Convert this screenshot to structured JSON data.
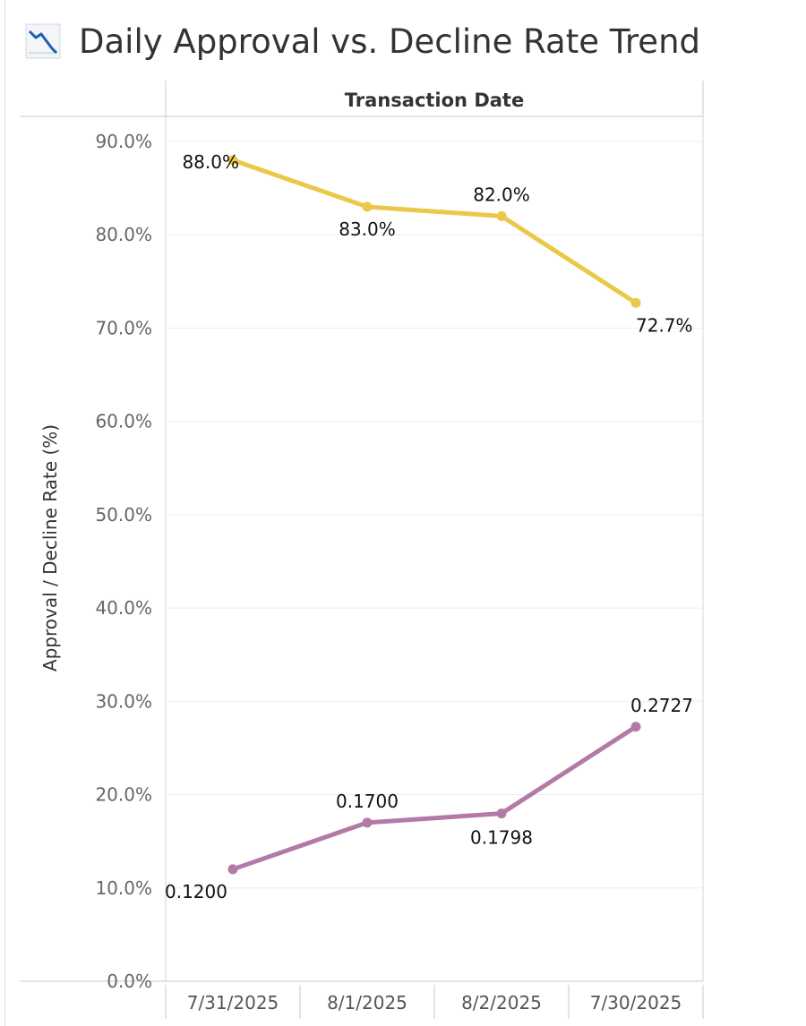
{
  "page": {
    "title": "Daily Approval vs. Decline Rate Trend",
    "title_icon": "line-chart-icon"
  },
  "chart_data": {
    "type": "line",
    "column_header": "Transaction Date",
    "ylabel": "Approval / Decline Rate (%)",
    "categories": [
      "7/31/2025",
      "8/1/2025",
      "8/2/2025",
      "7/30/2025"
    ],
    "y_ticks": [
      "0.0%",
      "10.0%",
      "20.0%",
      "30.0%",
      "40.0%",
      "50.0%",
      "60.0%",
      "70.0%",
      "80.0%",
      "90.0%"
    ],
    "ylim": [
      0,
      90
    ],
    "grid": true,
    "series": [
      {
        "values": [
          88.0,
          83.0,
          82.0,
          72.7
        ],
        "labels": [
          "88.0%",
          "83.0%",
          "82.0%",
          "72.7%"
        ],
        "color": "#e9c84a"
      },
      {
        "values": [
          12.0,
          17.0,
          17.98,
          27.27
        ],
        "labels": [
          "0.1200",
          "0.1700",
          "0.1798",
          "0.2727"
        ],
        "color": "#b47aa6"
      }
    ]
  }
}
